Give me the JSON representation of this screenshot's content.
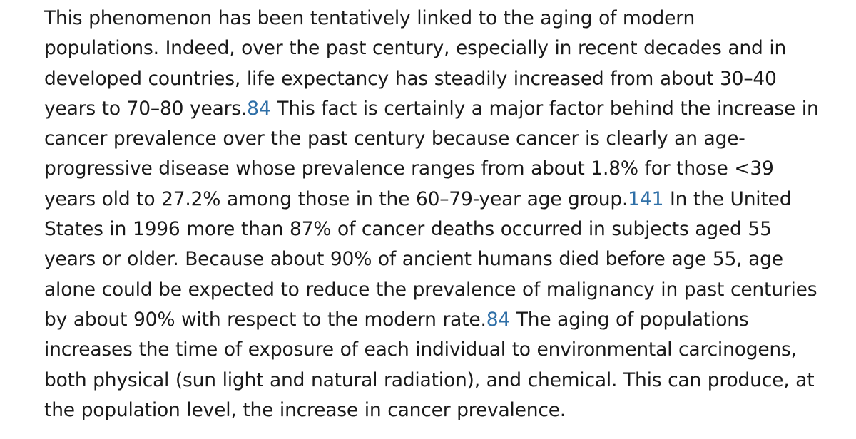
{
  "paragraph": {
    "lines": [
      [
        "This phenomenon has been tentatively linked to the aging of modern"
      ],
      [
        "populations. Indeed, over the past century, especially in recent decades and in"
      ],
      [
        "developed countries, life expectancy has steadily increased from about 30–40"
      ],
      [
        "years to 70–80 years.",
        "84",
        " This fact is certainly a major factor behind the increase in"
      ],
      [
        "cancer prevalence over the past century because cancer is clearly an age-"
      ],
      [
        "progressive disease whose prevalence ranges from about 1.8% for those <39"
      ],
      [
        "years old to 27.2% among those in the 60–79-year age group.",
        "141",
        " In the United"
      ],
      [
        "States in 1996 more than 87% of cancer deaths occurred in subjects aged 55"
      ],
      [
        "years or older. Because about 90% of ancient humans died before age 55, age"
      ],
      [
        "alone could be expected to reduce the prevalence of malignancy in past centuries"
      ],
      [
        "by about 90% with respect to the modern rate.",
        "84",
        " The aging of populations"
      ],
      [
        "increases the time of exposure of each individual to environmental carcinogens,"
      ],
      [
        "both physical (sun light and natural radiation), and chemical. This can produce, at"
      ],
      [
        "the population level, the increase in cancer prevalence."
      ]
    ]
  },
  "colors": {
    "text": "#1a1a1a",
    "citation_link": "#2f6fa7",
    "background": "#ffffff"
  }
}
